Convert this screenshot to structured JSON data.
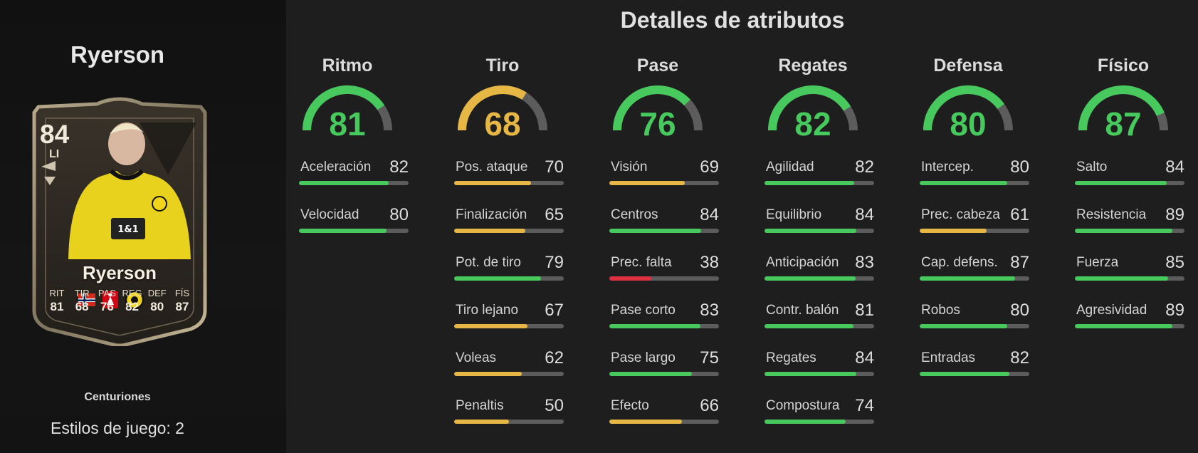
{
  "left": {
    "player_name": "Ryerson",
    "card_type": "Centuriones",
    "playstyles": "Estilos de juego: 2",
    "card": {
      "rating": "84",
      "position": "LI",
      "name": "Ryerson",
      "stat_labels": [
        "RIT",
        "TIR",
        "PAS",
        "REG",
        "DEF",
        "FÍS"
      ],
      "stat_values": [
        "81",
        "68",
        "76",
        "82",
        "80",
        "87"
      ],
      "jersey_text": "1&1"
    }
  },
  "title": "Detalles de atributos",
  "colors": {
    "green": "#47c95e",
    "yellow": "#e7b746",
    "red": "#de3040",
    "track": "#5b5c5b"
  },
  "groups": [
    {
      "name": "Ritmo",
      "value": 81,
      "stats": [
        {
          "name": "Aceleración",
          "value": 82
        },
        {
          "name": "Velocidad",
          "value": 80
        }
      ]
    },
    {
      "name": "Tiro",
      "value": 68,
      "stats": [
        {
          "name": "Pos. ataque",
          "value": 70
        },
        {
          "name": "Finalización",
          "value": 65
        },
        {
          "name": "Pot. de tiro",
          "value": 79
        },
        {
          "name": "Tiro lejano",
          "value": 67
        },
        {
          "name": "Voleas",
          "value": 62
        },
        {
          "name": "Penaltis",
          "value": 50
        }
      ]
    },
    {
      "name": "Pase",
      "value": 76,
      "stats": [
        {
          "name": "Visión",
          "value": 69
        },
        {
          "name": "Centros",
          "value": 84
        },
        {
          "name": "Prec. falta",
          "value": 38
        },
        {
          "name": "Pase corto",
          "value": 83
        },
        {
          "name": "Pase largo",
          "value": 75
        },
        {
          "name": "Efecto",
          "value": 66
        }
      ]
    },
    {
      "name": "Regates",
      "value": 82,
      "stats": [
        {
          "name": "Agilidad",
          "value": 82
        },
        {
          "name": "Equilibrio",
          "value": 84
        },
        {
          "name": "Anticipación",
          "value": 83
        },
        {
          "name": "Contr. balón",
          "value": 81
        },
        {
          "name": "Regates",
          "value": 84
        },
        {
          "name": "Compostura",
          "value": 74
        }
      ]
    },
    {
      "name": "Defensa",
      "value": 80,
      "stats": [
        {
          "name": "Intercep.",
          "value": 80
        },
        {
          "name": "Prec. cabeza",
          "value": 61
        },
        {
          "name": "Cap. defens.",
          "value": 87
        },
        {
          "name": "Robos",
          "value": 80
        },
        {
          "name": "Entradas",
          "value": 82
        }
      ]
    },
    {
      "name": "Físico",
      "value": 87,
      "stats": [
        {
          "name": "Salto",
          "value": 84
        },
        {
          "name": "Resistencia",
          "value": 89
        },
        {
          "name": "Fuerza",
          "value": 85
        },
        {
          "name": "Agresividad",
          "value": 89
        }
      ]
    }
  ]
}
